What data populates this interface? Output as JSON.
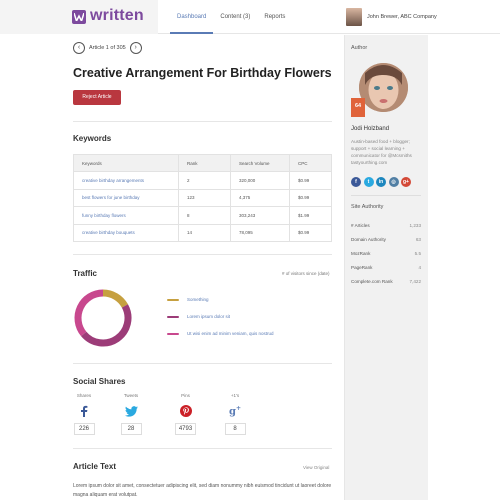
{
  "app": {
    "logo_text": "written"
  },
  "nav": [
    {
      "label": "Dashboard",
      "active": true
    },
    {
      "label": "Content (3)",
      "active": false
    },
    {
      "label": "Reports",
      "active": false
    }
  ],
  "user": {
    "name": "John Brewer, ABC Company"
  },
  "pager": {
    "text": "Article 1 of 305",
    "prev_icon": "chevron-left-icon",
    "next_icon": "chevron-right-icon"
  },
  "article": {
    "title": "Creative Arrangement For Birthday Flowers",
    "reject_label": "Reject Article"
  },
  "keywords": {
    "title": "Keywords",
    "columns": [
      "Keywords",
      "Rank",
      "Search Volume",
      "CPC"
    ],
    "rows": [
      [
        "creative birthday arrangements",
        "2",
        "320,000",
        "$0.99"
      ],
      [
        "best flowers for june birthday",
        "123",
        "4,375",
        "$0.99"
      ],
      [
        "funny birthday flowers",
        "8",
        "303,243",
        "$1.99"
      ],
      [
        "creative birthday bouquets",
        "14",
        "78,095",
        "$0.99"
      ]
    ]
  },
  "traffic": {
    "title": "Traffic",
    "visitors_label": "# of visitors since (date)",
    "legend": [
      {
        "label": "Something",
        "color": "#c6a040"
      },
      {
        "label": "Lorem ipsum dolor sit",
        "color": "#9c3c78"
      },
      {
        "label": "Ut wisi enim ad minim veniam, quis nostrud",
        "color": "#c8488e"
      }
    ],
    "shares": [
      0.17,
      0.47,
      0.36
    ]
  },
  "social": {
    "title": "Social Shares",
    "items": [
      {
        "label": "Shares",
        "icon": "facebook-icon",
        "count": "226"
      },
      {
        "label": "Tweets",
        "icon": "twitter-icon",
        "count": "28"
      },
      {
        "label": "Pins",
        "icon": "pinterest-icon",
        "count": "4793"
      },
      {
        "label": "+1's",
        "icon": "google-plus-icon",
        "count": "8"
      }
    ]
  },
  "article_text": {
    "title": "Article Text",
    "view_original": "View Original",
    "body": "Lorem ipsum dolor sit amet, consectetuer adipiscing elit, sed diam nonummy nibh euismod tincidunt ut laoreet dolore magna aliquam erat volutpat."
  },
  "author": {
    "heading": "Author",
    "name": "Jodi Holzband",
    "score": "64",
    "bio": "Austin-based food + blogger; support + social learning + communicator for @Mcsmiths tastyourthing.com",
    "social": [
      {
        "icon": "facebook-icon",
        "color": "#3b5998"
      },
      {
        "icon": "twitter-icon",
        "color": "#2aa9e0"
      },
      {
        "icon": "linkedin-icon",
        "color": "#1d87be"
      },
      {
        "icon": "instagram-icon",
        "color": "#517fa4"
      },
      {
        "icon": "google-plus-icon",
        "color": "#d34836"
      }
    ]
  },
  "site_authority": {
    "heading": "Site Authority",
    "rows": [
      {
        "label": "# Articles",
        "value": "1,233"
      },
      {
        "label": "Domain Authority",
        "value": "63"
      },
      {
        "label": "MozRank",
        "value": "5.5"
      },
      {
        "label": "PageRank",
        "value": "4"
      },
      {
        "label": "Complete.com Rank",
        "value": "7,422"
      }
    ]
  }
}
